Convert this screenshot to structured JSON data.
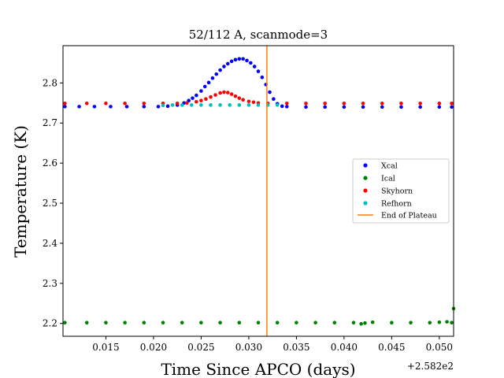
{
  "chart_data": {
    "type": "scatter",
    "title": "52/112 A, scanmode=3",
    "xlabel": "Time Since APCO (days)",
    "ylabel": "Temperature (K)",
    "x_offset_label": "+2.582e2",
    "xlim": [
      0.0105,
      0.0515
    ],
    "ylim": [
      2.168,
      2.893
    ],
    "xticks": [
      0.015,
      0.02,
      0.025,
      0.03,
      0.035,
      0.04,
      0.045,
      0.05
    ],
    "xtick_labels": [
      "0.015",
      "0.020",
      "0.025",
      "0.030",
      "0.035",
      "0.040",
      "0.045",
      "0.050"
    ],
    "yticks": [
      2.2,
      2.3,
      2.4,
      2.5,
      2.6,
      2.7,
      2.8
    ],
    "ytick_labels": [
      "2.2",
      "2.3",
      "2.4",
      "2.5",
      "2.6",
      "2.7",
      "2.8"
    ],
    "grid": false,
    "legend_position": "center-right",
    "series": [
      {
        "name": "Xcal",
        "color": "#0000ff",
        "points": [
          [
            0.0107,
            2.741
          ],
          [
            0.0122,
            2.741
          ],
          [
            0.0138,
            2.741
          ],
          [
            0.0155,
            2.741
          ],
          [
            0.0172,
            2.741
          ],
          [
            0.019,
            2.741
          ],
          [
            0.0205,
            2.741
          ],
          [
            0.0215,
            2.742
          ],
          [
            0.0225,
            2.745
          ],
          [
            0.0232,
            2.75
          ],
          [
            0.0237,
            2.756
          ],
          [
            0.0241,
            2.762
          ],
          [
            0.0245,
            2.769
          ],
          [
            0.025,
            2.78
          ],
          [
            0.0254,
            2.791
          ],
          [
            0.0258,
            2.801
          ],
          [
            0.0262,
            2.812
          ],
          [
            0.0266,
            2.822
          ],
          [
            0.027,
            2.832
          ],
          [
            0.0274,
            2.841
          ],
          [
            0.0278,
            2.848
          ],
          [
            0.0282,
            2.854
          ],
          [
            0.0286,
            2.858
          ],
          [
            0.029,
            2.86
          ],
          [
            0.0294,
            2.86
          ],
          [
            0.0298,
            2.856
          ],
          [
            0.0302,
            2.85
          ],
          [
            0.0306,
            2.841
          ],
          [
            0.031,
            2.829
          ],
          [
            0.0314,
            2.814
          ],
          [
            0.0318,
            2.796
          ],
          [
            0.0322,
            2.777
          ],
          [
            0.0326,
            2.76
          ],
          [
            0.033,
            2.748
          ],
          [
            0.0335,
            2.742
          ],
          [
            0.034,
            2.741
          ],
          [
            0.036,
            2.74
          ],
          [
            0.038,
            2.74
          ],
          [
            0.04,
            2.74
          ],
          [
            0.042,
            2.74
          ],
          [
            0.044,
            2.74
          ],
          [
            0.046,
            2.74
          ],
          [
            0.048,
            2.74
          ],
          [
            0.05,
            2.74
          ],
          [
            0.0513,
            2.74
          ]
        ]
      },
      {
        "name": "Ical",
        "color": "#008000",
        "points": [
          [
            0.0107,
            2.202
          ],
          [
            0.013,
            2.202
          ],
          [
            0.015,
            2.202
          ],
          [
            0.017,
            2.202
          ],
          [
            0.019,
            2.202
          ],
          [
            0.021,
            2.202
          ],
          [
            0.023,
            2.202
          ],
          [
            0.025,
            2.202
          ],
          [
            0.027,
            2.202
          ],
          [
            0.029,
            2.202
          ],
          [
            0.031,
            2.202
          ],
          [
            0.033,
            2.202
          ],
          [
            0.035,
            2.202
          ],
          [
            0.037,
            2.202
          ],
          [
            0.039,
            2.202
          ],
          [
            0.041,
            2.202
          ],
          [
            0.0418,
            2.199
          ],
          [
            0.0422,
            2.201
          ],
          [
            0.043,
            2.203
          ],
          [
            0.045,
            2.202
          ],
          [
            0.047,
            2.202
          ],
          [
            0.049,
            2.202
          ],
          [
            0.05,
            2.203
          ],
          [
            0.0508,
            2.204
          ],
          [
            0.0513,
            2.202
          ],
          [
            0.0515,
            2.237
          ]
        ]
      },
      {
        "name": "Skyhorn",
        "color": "#ff0000",
        "points": [
          [
            0.0107,
            2.749
          ],
          [
            0.013,
            2.749
          ],
          [
            0.015,
            2.749
          ],
          [
            0.017,
            2.749
          ],
          [
            0.019,
            2.749
          ],
          [
            0.021,
            2.749
          ],
          [
            0.0225,
            2.749
          ],
          [
            0.0235,
            2.75
          ],
          [
            0.0245,
            2.753
          ],
          [
            0.025,
            2.756
          ],
          [
            0.0255,
            2.76
          ],
          [
            0.026,
            2.765
          ],
          [
            0.0265,
            2.77
          ],
          [
            0.027,
            2.775
          ],
          [
            0.0274,
            2.777
          ],
          [
            0.0278,
            2.776
          ],
          [
            0.0282,
            2.772
          ],
          [
            0.0286,
            2.767
          ],
          [
            0.029,
            2.762
          ],
          [
            0.0294,
            2.758
          ],
          [
            0.03,
            2.754
          ],
          [
            0.0305,
            2.752
          ],
          [
            0.031,
            2.75
          ],
          [
            0.032,
            2.749
          ],
          [
            0.034,
            2.749
          ],
          [
            0.036,
            2.749
          ],
          [
            0.038,
            2.749
          ],
          [
            0.04,
            2.749
          ],
          [
            0.042,
            2.749
          ],
          [
            0.044,
            2.749
          ],
          [
            0.046,
            2.749
          ],
          [
            0.048,
            2.749
          ],
          [
            0.05,
            2.749
          ],
          [
            0.0513,
            2.749
          ]
        ]
      },
      {
        "name": "Refhorn",
        "color": "#00bfbf",
        "points": [
          [
            0.021,
            2.744
          ],
          [
            0.022,
            2.745
          ],
          [
            0.023,
            2.745
          ],
          [
            0.024,
            2.745
          ],
          [
            0.025,
            2.745
          ],
          [
            0.026,
            2.745
          ],
          [
            0.027,
            2.745
          ],
          [
            0.028,
            2.745
          ],
          [
            0.029,
            2.745
          ],
          [
            0.03,
            2.745
          ],
          [
            0.031,
            2.745
          ],
          [
            0.032,
            2.745
          ],
          [
            0.033,
            2.745
          ]
        ]
      }
    ],
    "vline": {
      "name": "End of Plateau",
      "x": 0.0319,
      "color": "#ff7f0e"
    }
  }
}
